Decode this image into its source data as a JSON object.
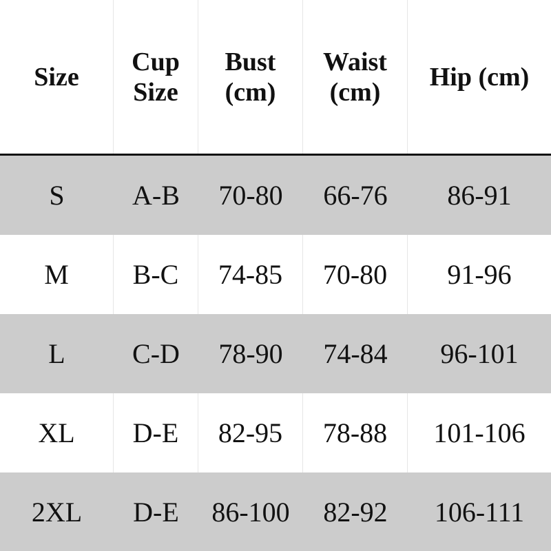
{
  "headers": [
    "Size",
    "Cup\nSize",
    "Bust\n(cm)",
    "Waist\n(cm)",
    "Hip (cm)"
  ],
  "rows": [
    [
      "S",
      "A-B",
      "70-80",
      "66-76",
      "86-91"
    ],
    [
      "M",
      "B-C",
      "74-85",
      "70-80",
      "91-96"
    ],
    [
      "L",
      "C-D",
      "78-90",
      "74-84",
      "96-101"
    ],
    [
      "XL",
      "D-E",
      "82-95",
      "78-88",
      "101-106"
    ],
    [
      "2XL",
      "D-E",
      "86-100",
      "82-92",
      "106-111"
    ]
  ],
  "colors": {
    "stripe": "#cccccc",
    "header_rule": "#111111"
  }
}
